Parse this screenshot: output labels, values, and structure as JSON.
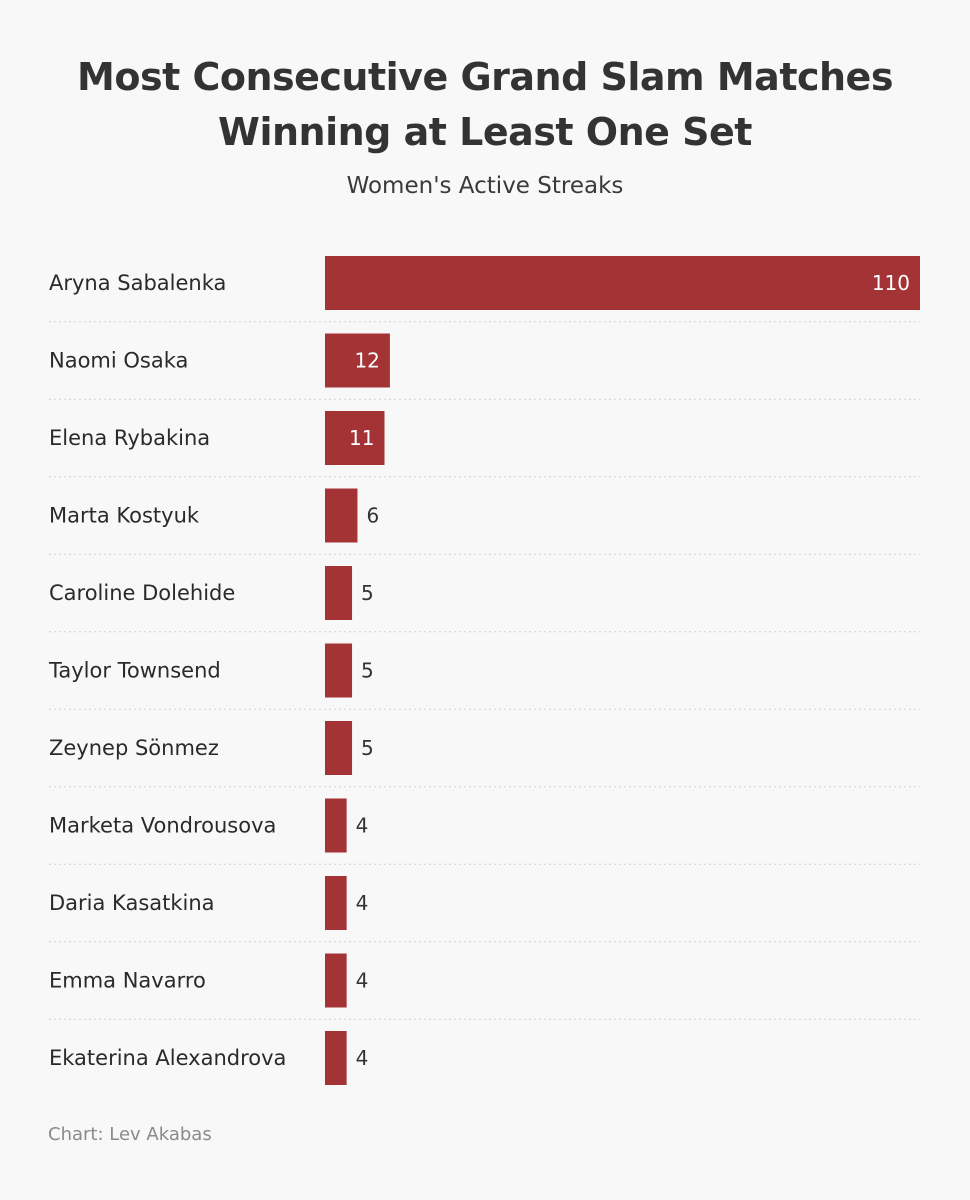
{
  "title": "Most Consecutive Grand Slam Matches Winning at Least One Set",
  "subtitle": "Women's Active Streaks",
  "source": "Chart: Lev Akabas",
  "colors": {
    "bar": "#a33335",
    "background": "#f8f8f8",
    "label_inside": "#ffffff",
    "label_outside": "#333333"
  },
  "chart_data": {
    "type": "bar",
    "orientation": "horizontal",
    "title": "Most Consecutive Grand Slam Matches Winning at Least One Set",
    "subtitle": "Women's Active Streaks",
    "categories": [
      "Aryna Sabalenka",
      "Naomi Osaka",
      "Elena Rybakina",
      "Marta Kostyuk",
      "Caroline Dolehide",
      "Taylor Townsend",
      "Zeynep Sönmez",
      "Marketa Vondrousova",
      "Daria Kasatkina",
      "Emma Navarro",
      "Ekaterina Alexandrova"
    ],
    "values": [
      110,
      12,
      11,
      6,
      5,
      5,
      5,
      4,
      4,
      4,
      4
    ],
    "xlim": [
      0,
      110
    ],
    "grid": false,
    "data_labels": true,
    "legend": "none"
  }
}
